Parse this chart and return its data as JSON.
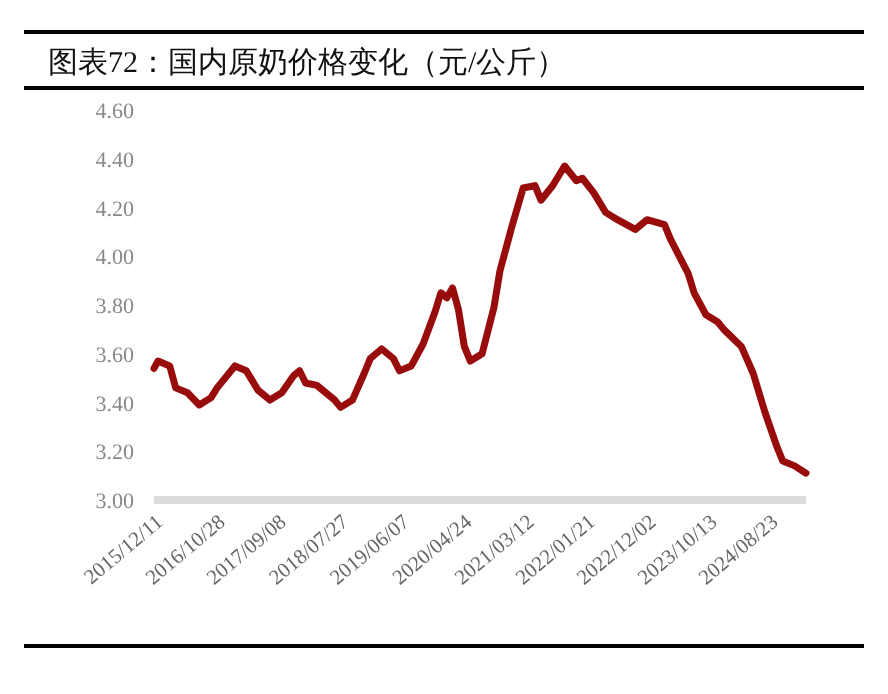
{
  "chart_data": {
    "type": "line",
    "title": "图表72：国内原奶价格变化（元/公斤）",
    "x": [
      "2015-12-11",
      "2016-01",
      "2016-03",
      "2016-04",
      "2016-06",
      "2016-08",
      "2016-10",
      "2016-11",
      "2017-02",
      "2017-04",
      "2017-06",
      "2017-08",
      "2017-10",
      "2017-12",
      "2018-01",
      "2018-02",
      "2018-04",
      "2018-07",
      "2018-08",
      "2018-10",
      "2018-12",
      "2019-01",
      "2019-03",
      "2019-05",
      "2019-06",
      "2019-08",
      "2019-10",
      "2019-12",
      "2020-01",
      "2020-02",
      "2020-03",
      "2020-04",
      "2020-05",
      "2020-06",
      "2020-08",
      "2020-10",
      "2020-11",
      "2021-01",
      "2021-03",
      "2021-05",
      "2021-06",
      "2021-08",
      "2021-10",
      "2021-12",
      "2022-01",
      "2022-03",
      "2022-05",
      "2022-07",
      "2022-10",
      "2022-12",
      "2023-03",
      "2023-04",
      "2023-07",
      "2023-08",
      "2023-10",
      "2023-12",
      "2024-01",
      "2024-04",
      "2024-06",
      "2024-08",
      "2024-10",
      "2024-11",
      "2025-01",
      "2025-03"
    ],
    "series": [
      {
        "color": "#990c0c",
        "values": [
          3.54,
          3.57,
          3.55,
          3.46,
          3.44,
          3.39,
          3.42,
          3.46,
          3.55,
          3.53,
          3.45,
          3.41,
          3.44,
          3.51,
          3.53,
          3.48,
          3.47,
          3.41,
          3.38,
          3.41,
          3.52,
          3.58,
          3.62,
          3.58,
          3.53,
          3.55,
          3.64,
          3.77,
          3.85,
          3.83,
          3.87,
          3.78,
          3.63,
          3.57,
          3.6,
          3.79,
          3.94,
          4.12,
          4.28,
          4.29,
          4.23,
          4.29,
          4.37,
          4.31,
          4.32,
          4.26,
          4.18,
          4.15,
          4.11,
          4.15,
          4.13,
          4.07,
          3.93,
          3.85,
          3.76,
          3.73,
          3.7,
          3.63,
          3.52,
          3.36,
          3.22,
          3.16,
          3.14,
          3.11
        ]
      }
    ],
    "xlim": [
      "2015-12-11",
      "2025-03"
    ],
    "xticks": [
      {
        "value": "2015-12-11",
        "label": "2015/12/11"
      },
      {
        "value": "2016-10-28",
        "label": "2016/10/28"
      },
      {
        "value": "2017-09-08",
        "label": "2017/09/08"
      },
      {
        "value": "2018-07-27",
        "label": "2018/07/27"
      },
      {
        "value": "2019-06-07",
        "label": "2019/06/07"
      },
      {
        "value": "2020-04-24",
        "label": "2020/04/24"
      },
      {
        "value": "2021-03-12",
        "label": "2021/03/12"
      },
      {
        "value": "2022-01-21",
        "label": "2022/01/21"
      },
      {
        "value": "2022-12-02",
        "label": "2022/12/02"
      },
      {
        "value": "2023-10-13",
        "label": "2023/10/13"
      },
      {
        "value": "2024-08-23",
        "label": "2024/08/23"
      }
    ],
    "ylim": [
      3,
      4.6
    ],
    "yticks": [
      {
        "value": 3,
        "label": "3.00"
      },
      {
        "value": 3.2,
        "label": "3.20"
      },
      {
        "value": 3.4,
        "label": "3.40"
      },
      {
        "value": 3.6,
        "label": "3.60"
      },
      {
        "value": 3.8,
        "label": "3.80"
      },
      {
        "value": 4,
        "label": "4.00"
      },
      {
        "value": 4.2,
        "label": "4.20"
      },
      {
        "value": 4.4,
        "label": "4.40"
      },
      {
        "value": 4.6,
        "label": "4.60"
      }
    ]
  }
}
